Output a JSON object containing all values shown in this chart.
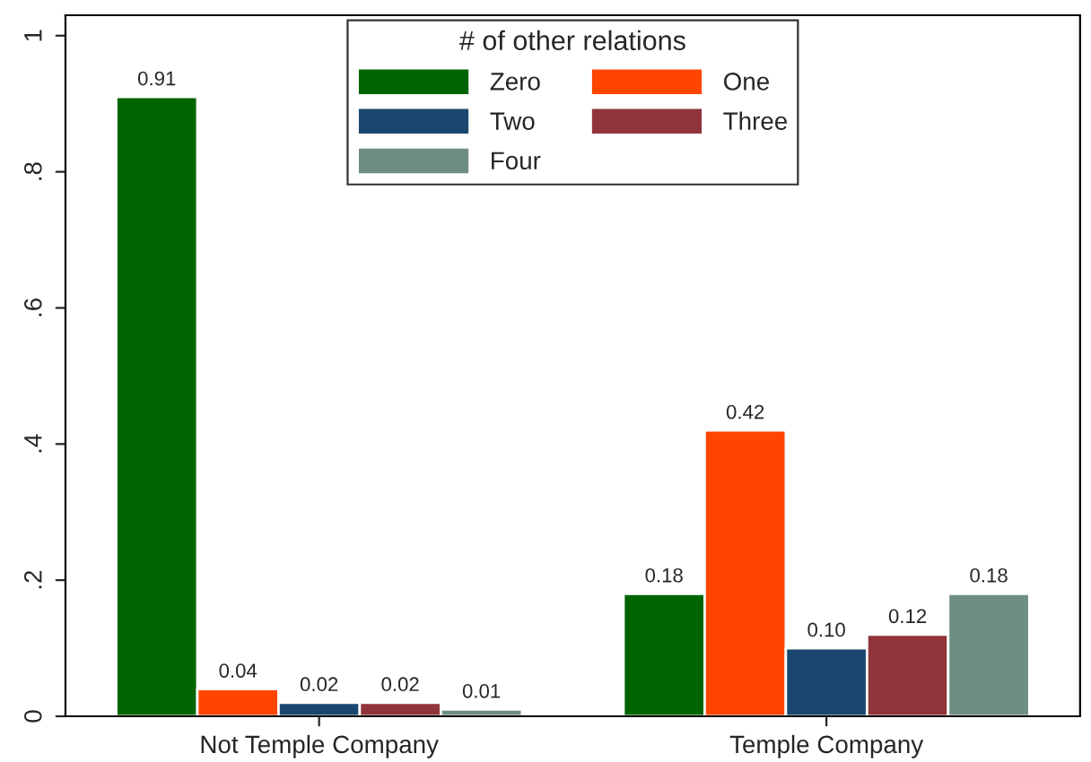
{
  "chart_data": {
    "type": "bar",
    "legend_title": "# of other relations",
    "categories": [
      "Not Temple Company",
      "Temple Company"
    ],
    "series": [
      {
        "name": "Zero",
        "color": "#006400",
        "values": [
          0.91,
          0.18
        ],
        "value_labels": [
          "0.91",
          "0.18"
        ]
      },
      {
        "name": "One",
        "color": "#ff4500",
        "values": [
          0.04,
          0.42
        ],
        "value_labels": [
          "0.04",
          "0.42"
        ]
      },
      {
        "name": "Two",
        "color": "#1a476f",
        "values": [
          0.02,
          0.1
        ],
        "value_labels": [
          "0.02",
          "0.10"
        ]
      },
      {
        "name": "Three",
        "color": "#90353b",
        "values": [
          0.02,
          0.12
        ],
        "value_labels": [
          "0.02",
          "0.12"
        ]
      },
      {
        "name": "Four",
        "color": "#6e8e84",
        "values": [
          0.01,
          0.18
        ],
        "value_labels": [
          "0.01",
          "0.18"
        ]
      }
    ],
    "ylim": [
      0,
      1.03
    ],
    "yticks": [
      0,
      {
        "value": 0.2,
        "label": ".2"
      },
      {
        "value": 0.4,
        "label": ".4"
      },
      {
        "value": 0.6,
        "label": ".6"
      },
      {
        "value": 0.8,
        "label": ".8"
      },
      1
    ],
    "grid": false,
    "legend": "top"
  }
}
